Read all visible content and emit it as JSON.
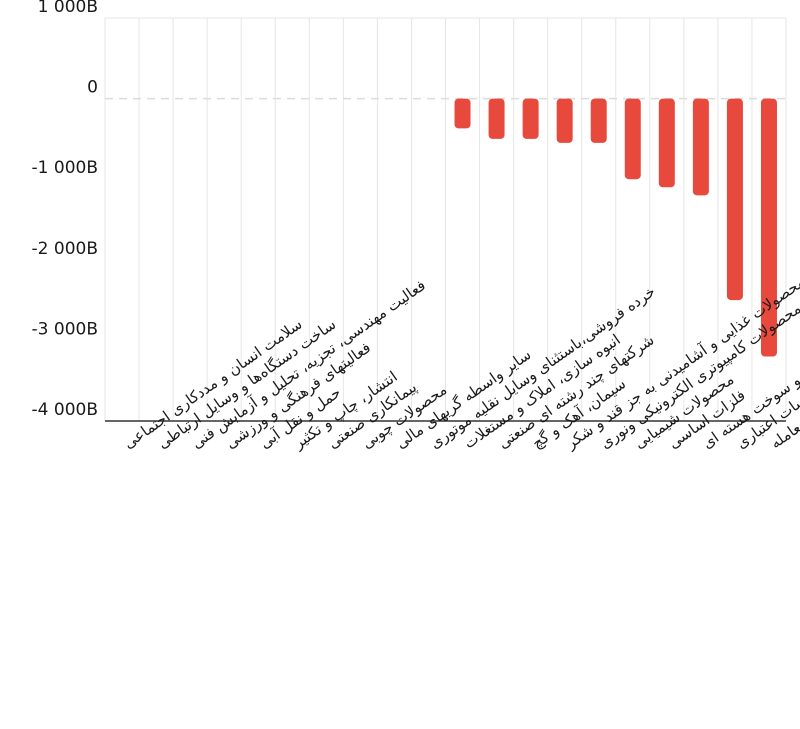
{
  "chart_data": {
    "type": "bar",
    "title": "",
    "xlabel": "",
    "ylabel": "",
    "ylim": [
      -4000,
      1000
    ],
    "y_ticks": [
      {
        "value": 1000,
        "label": "1 000B"
      },
      {
        "value": 0,
        "label": "0"
      },
      {
        "value": -1000,
        "label": "-1 000B"
      },
      {
        "value": -2000,
        "label": "-2 000B"
      },
      {
        "value": -3000,
        "label": "-3 000B"
      },
      {
        "value": -4000,
        "label": "-4 000B"
      }
    ],
    "bar_color": "#e8493d",
    "grid": true,
    "categories": [
      "سلامت انسان و مددکاری اجتماعی",
      "ساخت دستگاه‌ها و وسایل ارتباطی",
      "فعالیت مهندسی، تجزیه، تحلیل و آزمایش فنی",
      "فعالیتهای فرهنگی و ورزشی",
      "حمل و نقل آبی",
      "انتشار، چاپ و تکثیر",
      "پیمانکاری صنعتی",
      "محصولات چوبی",
      "سایر واسطه گریهای مالی",
      "خرده فروشی،باستثنای وسایل نقلیه موتوری",
      "انبوه سازی، املاک و مستغلات",
      "شرکتهای چند رشته ای صنعتی",
      "سیمان، آهک و گچ",
      "محصولات غذایی و آشامیدنی به جز قند و شکر",
      "تولید محصولات کامپیوتری الکترونیکی ونوری",
      "محصولات شیمیایی",
      "فلزات اساسی",
      "فراورده های نفتی، کک و سوخت هسته ای",
      "بانکها و موسسات اعتباری",
      "صندوق سرمایه گذاری قابل معامله"
    ],
    "values": [
      0,
      0,
      0,
      0,
      0,
      0,
      0,
      0,
      0,
      0,
      -370,
      -500,
      -500,
      -550,
      -550,
      -1000,
      -1100,
      -1200,
      -2500,
      -3200
    ]
  }
}
